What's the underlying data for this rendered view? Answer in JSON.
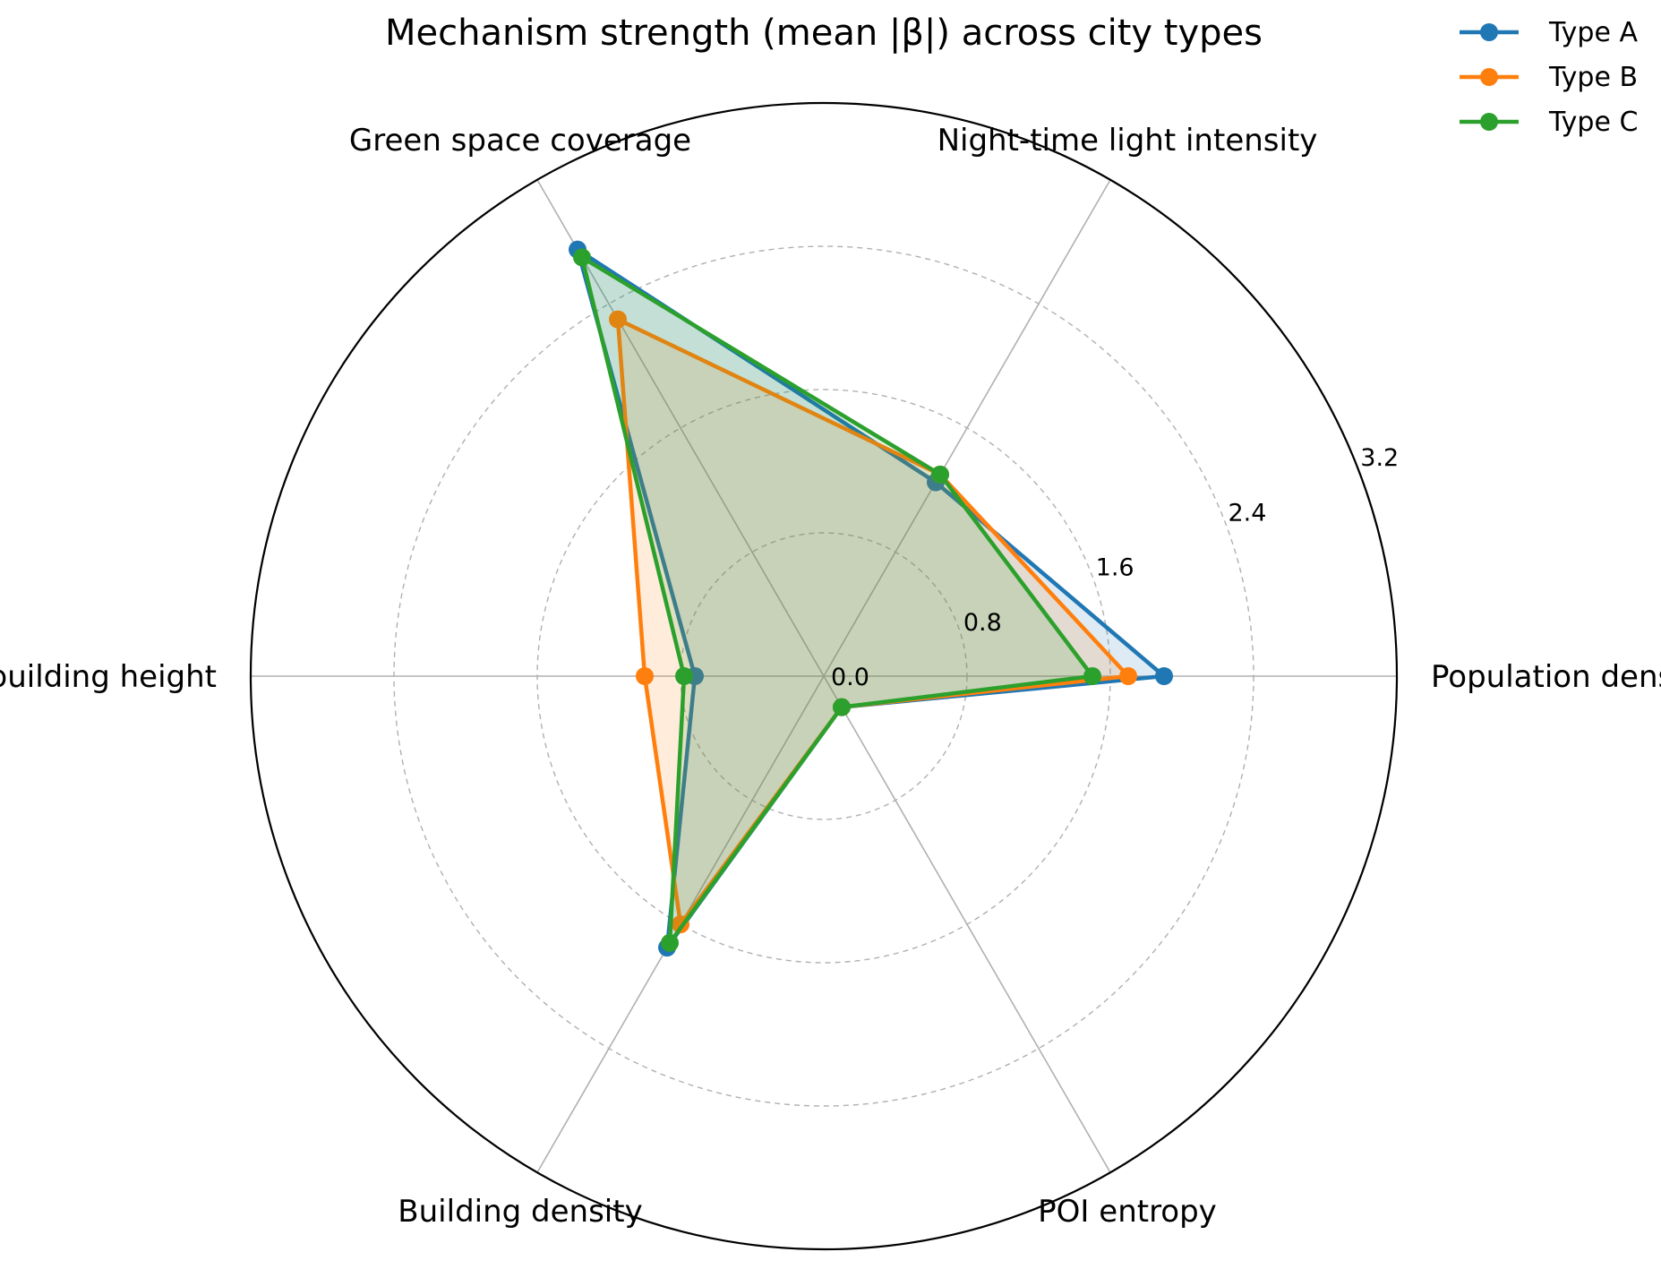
{
  "colors": {
    "Type A": "#1f77b4",
    "Type B": "#ff7f0e",
    "Type C": "#2ca02c",
    "grid": "#b0b0b0",
    "frame": "#000000"
  },
  "chart_data": {
    "type": "radar",
    "title": "Mechanism strength (mean |β|) across city types",
    "categories": [
      "Population density",
      "Night-time light intensity",
      "Green space coverage",
      "Average building height",
      "Building density",
      "POI entropy"
    ],
    "series": [
      {
        "name": "Type A",
        "values": [
          1.9,
          1.25,
          2.75,
          0.72,
          1.75,
          0.2
        ]
      },
      {
        "name": "Type B",
        "values": [
          1.7,
          1.3,
          2.3,
          1.0,
          1.6,
          0.2
        ]
      },
      {
        "name": "Type C",
        "values": [
          1.5,
          1.3,
          2.7,
          0.78,
          1.72,
          0.2
        ]
      }
    ],
    "radial_ticks": [
      0.0,
      0.8,
      1.6,
      2.4,
      3.2
    ],
    "radial_tick_labels": [
      "0.0",
      "0.8",
      "1.6",
      "2.4",
      "3.2"
    ],
    "rlim": [
      0,
      3.2
    ],
    "grid": true,
    "legend_position": "top-right"
  }
}
